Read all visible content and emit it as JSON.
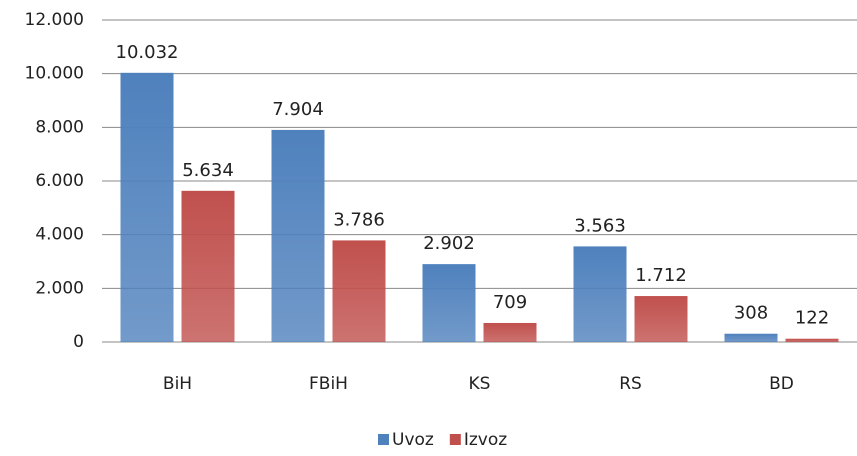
{
  "chart_data": {
    "type": "bar",
    "categories": [
      "BiH",
      "FBiH",
      "KS",
      "RS",
      "BD"
    ],
    "series": [
      {
        "name": "Uvoz",
        "color": "#4f81bd",
        "values": [
          10032,
          7904,
          2902,
          3563,
          308
        ],
        "value_labels": [
          "10.032",
          "7.904",
          "2.902",
          "3.563",
          "308"
        ]
      },
      {
        "name": "Izvoz",
        "color": "#c0504d",
        "values": [
          5634,
          3786,
          709,
          1712,
          122
        ],
        "value_labels": [
          "5.634",
          "3.786",
          "709",
          "1.712",
          "122"
        ]
      }
    ],
    "ylim": [
      0,
      12000
    ],
    "yticks": [
      0,
      {
        "value": 2000,
        "label": "2.000"
      },
      {
        "value": 4000,
        "label": "4.000"
      },
      {
        "value": 6000,
        "label": "6.000"
      },
      {
        "value": 8000,
        "label": "8.000"
      },
      {
        "value": 10000,
        "label": "10.000"
      },
      {
        "value": 12000,
        "label": "12.000"
      }
    ],
    "grid": true,
    "legend": "bottom"
  }
}
